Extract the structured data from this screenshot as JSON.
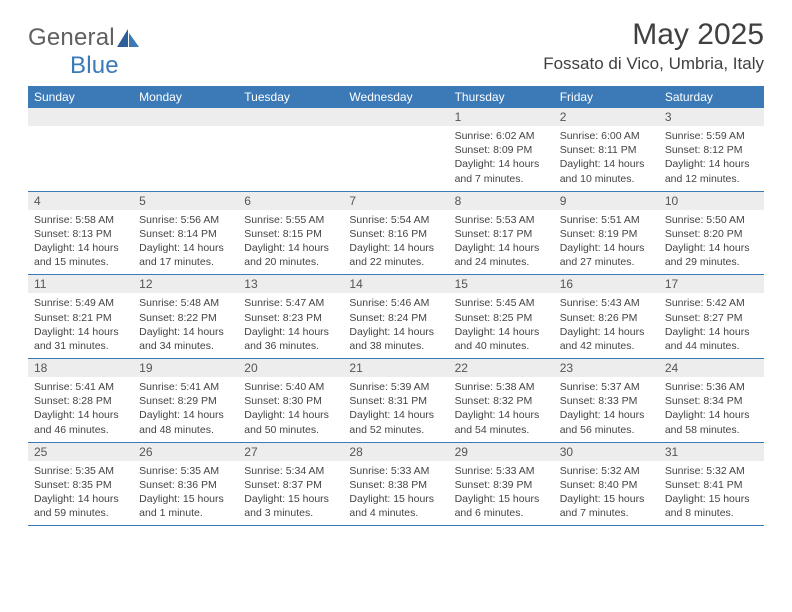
{
  "brand": {
    "part1": "General",
    "part2": "Blue"
  },
  "title": "May 2025",
  "location": "Fossato di Vico, Umbria, Italy",
  "colors": {
    "header_bg": "#3b79b7",
    "daynum_bg": "#ededed",
    "page_bg": "#ffffff",
    "text": "#404040"
  },
  "weekdays": [
    "Sunday",
    "Monday",
    "Tuesday",
    "Wednesday",
    "Thursday",
    "Friday",
    "Saturday"
  ],
  "weeks": [
    [
      {
        "n": "",
        "sr": "",
        "ss": "",
        "dl": ""
      },
      {
        "n": "",
        "sr": "",
        "ss": "",
        "dl": ""
      },
      {
        "n": "",
        "sr": "",
        "ss": "",
        "dl": ""
      },
      {
        "n": "",
        "sr": "",
        "ss": "",
        "dl": ""
      },
      {
        "n": "1",
        "sr": "Sunrise: 6:02 AM",
        "ss": "Sunset: 8:09 PM",
        "dl": "Daylight: 14 hours and 7 minutes."
      },
      {
        "n": "2",
        "sr": "Sunrise: 6:00 AM",
        "ss": "Sunset: 8:11 PM",
        "dl": "Daylight: 14 hours and 10 minutes."
      },
      {
        "n": "3",
        "sr": "Sunrise: 5:59 AM",
        "ss": "Sunset: 8:12 PM",
        "dl": "Daylight: 14 hours and 12 minutes."
      }
    ],
    [
      {
        "n": "4",
        "sr": "Sunrise: 5:58 AM",
        "ss": "Sunset: 8:13 PM",
        "dl": "Daylight: 14 hours and 15 minutes."
      },
      {
        "n": "5",
        "sr": "Sunrise: 5:56 AM",
        "ss": "Sunset: 8:14 PM",
        "dl": "Daylight: 14 hours and 17 minutes."
      },
      {
        "n": "6",
        "sr": "Sunrise: 5:55 AM",
        "ss": "Sunset: 8:15 PM",
        "dl": "Daylight: 14 hours and 20 minutes."
      },
      {
        "n": "7",
        "sr": "Sunrise: 5:54 AM",
        "ss": "Sunset: 8:16 PM",
        "dl": "Daylight: 14 hours and 22 minutes."
      },
      {
        "n": "8",
        "sr": "Sunrise: 5:53 AM",
        "ss": "Sunset: 8:17 PM",
        "dl": "Daylight: 14 hours and 24 minutes."
      },
      {
        "n": "9",
        "sr": "Sunrise: 5:51 AM",
        "ss": "Sunset: 8:19 PM",
        "dl": "Daylight: 14 hours and 27 minutes."
      },
      {
        "n": "10",
        "sr": "Sunrise: 5:50 AM",
        "ss": "Sunset: 8:20 PM",
        "dl": "Daylight: 14 hours and 29 minutes."
      }
    ],
    [
      {
        "n": "11",
        "sr": "Sunrise: 5:49 AM",
        "ss": "Sunset: 8:21 PM",
        "dl": "Daylight: 14 hours and 31 minutes."
      },
      {
        "n": "12",
        "sr": "Sunrise: 5:48 AM",
        "ss": "Sunset: 8:22 PM",
        "dl": "Daylight: 14 hours and 34 minutes."
      },
      {
        "n": "13",
        "sr": "Sunrise: 5:47 AM",
        "ss": "Sunset: 8:23 PM",
        "dl": "Daylight: 14 hours and 36 minutes."
      },
      {
        "n": "14",
        "sr": "Sunrise: 5:46 AM",
        "ss": "Sunset: 8:24 PM",
        "dl": "Daylight: 14 hours and 38 minutes."
      },
      {
        "n": "15",
        "sr": "Sunrise: 5:45 AM",
        "ss": "Sunset: 8:25 PM",
        "dl": "Daylight: 14 hours and 40 minutes."
      },
      {
        "n": "16",
        "sr": "Sunrise: 5:43 AM",
        "ss": "Sunset: 8:26 PM",
        "dl": "Daylight: 14 hours and 42 minutes."
      },
      {
        "n": "17",
        "sr": "Sunrise: 5:42 AM",
        "ss": "Sunset: 8:27 PM",
        "dl": "Daylight: 14 hours and 44 minutes."
      }
    ],
    [
      {
        "n": "18",
        "sr": "Sunrise: 5:41 AM",
        "ss": "Sunset: 8:28 PM",
        "dl": "Daylight: 14 hours and 46 minutes."
      },
      {
        "n": "19",
        "sr": "Sunrise: 5:41 AM",
        "ss": "Sunset: 8:29 PM",
        "dl": "Daylight: 14 hours and 48 minutes."
      },
      {
        "n": "20",
        "sr": "Sunrise: 5:40 AM",
        "ss": "Sunset: 8:30 PM",
        "dl": "Daylight: 14 hours and 50 minutes."
      },
      {
        "n": "21",
        "sr": "Sunrise: 5:39 AM",
        "ss": "Sunset: 8:31 PM",
        "dl": "Daylight: 14 hours and 52 minutes."
      },
      {
        "n": "22",
        "sr": "Sunrise: 5:38 AM",
        "ss": "Sunset: 8:32 PM",
        "dl": "Daylight: 14 hours and 54 minutes."
      },
      {
        "n": "23",
        "sr": "Sunrise: 5:37 AM",
        "ss": "Sunset: 8:33 PM",
        "dl": "Daylight: 14 hours and 56 minutes."
      },
      {
        "n": "24",
        "sr": "Sunrise: 5:36 AM",
        "ss": "Sunset: 8:34 PM",
        "dl": "Daylight: 14 hours and 58 minutes."
      }
    ],
    [
      {
        "n": "25",
        "sr": "Sunrise: 5:35 AM",
        "ss": "Sunset: 8:35 PM",
        "dl": "Daylight: 14 hours and 59 minutes."
      },
      {
        "n": "26",
        "sr": "Sunrise: 5:35 AM",
        "ss": "Sunset: 8:36 PM",
        "dl": "Daylight: 15 hours and 1 minute."
      },
      {
        "n": "27",
        "sr": "Sunrise: 5:34 AM",
        "ss": "Sunset: 8:37 PM",
        "dl": "Daylight: 15 hours and 3 minutes."
      },
      {
        "n": "28",
        "sr": "Sunrise: 5:33 AM",
        "ss": "Sunset: 8:38 PM",
        "dl": "Daylight: 15 hours and 4 minutes."
      },
      {
        "n": "29",
        "sr": "Sunrise: 5:33 AM",
        "ss": "Sunset: 8:39 PM",
        "dl": "Daylight: 15 hours and 6 minutes."
      },
      {
        "n": "30",
        "sr": "Sunrise: 5:32 AM",
        "ss": "Sunset: 8:40 PM",
        "dl": "Daylight: 15 hours and 7 minutes."
      },
      {
        "n": "31",
        "sr": "Sunrise: 5:32 AM",
        "ss": "Sunset: 8:41 PM",
        "dl": "Daylight: 15 hours and 8 minutes."
      }
    ]
  ]
}
